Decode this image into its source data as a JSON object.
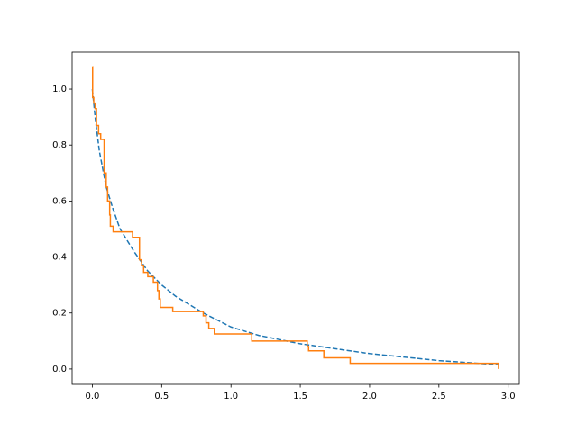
{
  "chart_data": {
    "type": "line",
    "xlim": [
      -0.146,
      3.08
    ],
    "ylim": [
      -0.055,
      1.132
    ],
    "xticks": [
      {
        "value": 0,
        "label": "0.0"
      },
      0.5,
      {
        "value": 1,
        "label": "1.0"
      },
      1.5,
      {
        "value": 2,
        "label": "2.0"
      },
      2.5,
      {
        "value": 3,
        "label": "3.0"
      }
    ],
    "yticks": [
      {
        "value": 0,
        "label": "0.0"
      },
      0.2,
      0.4,
      0.6,
      0.8,
      {
        "value": 1,
        "label": "1.0"
      }
    ],
    "series": [
      {
        "color": "#1f77b4",
        "linestyle": "dashed",
        "drawstyle": "default",
        "x": [
          0,
          0.02,
          0.05,
          0.1,
          0.15,
          0.2,
          0.3,
          0.4,
          0.5,
          0.6,
          0.8,
          1.0,
          1.2,
          1.5,
          2.0,
          2.5,
          2.93
        ],
        "values": [
          1.0,
          0.9,
          0.78,
          0.65,
          0.57,
          0.5,
          0.42,
          0.35,
          0.3,
          0.26,
          0.2,
          0.15,
          0.12,
          0.09,
          0.055,
          0.03,
          0.015
        ]
      },
      {
        "color": "#ff7f0e",
        "linestyle": "solid",
        "drawstyle": "steps-post",
        "x": [
          0,
          0.002,
          0.01,
          0.02,
          0.03,
          0.045,
          0.06,
          0.085,
          0.1,
          0.11,
          0.125,
          0.13,
          0.15,
          0.29,
          0.34,
          0.355,
          0.37,
          0.4,
          0.44,
          0.47,
          0.48,
          0.49,
          0.58,
          0.8,
          0.82,
          0.84,
          0.88,
          1.15,
          1.55,
          1.56,
          1.67,
          1.86,
          2.93
        ],
        "values": [
          1.08,
          0.97,
          0.95,
          0.93,
          0.87,
          0.84,
          0.82,
          0.7,
          0.65,
          0.6,
          0.55,
          0.51,
          0.49,
          0.47,
          0.39,
          0.37,
          0.345,
          0.33,
          0.31,
          0.28,
          0.25,
          0.22,
          0.205,
          0.19,
          0.165,
          0.145,
          0.125,
          0.1,
          0.08,
          0.065,
          0.04,
          0.02,
          0
        ]
      }
    ]
  }
}
